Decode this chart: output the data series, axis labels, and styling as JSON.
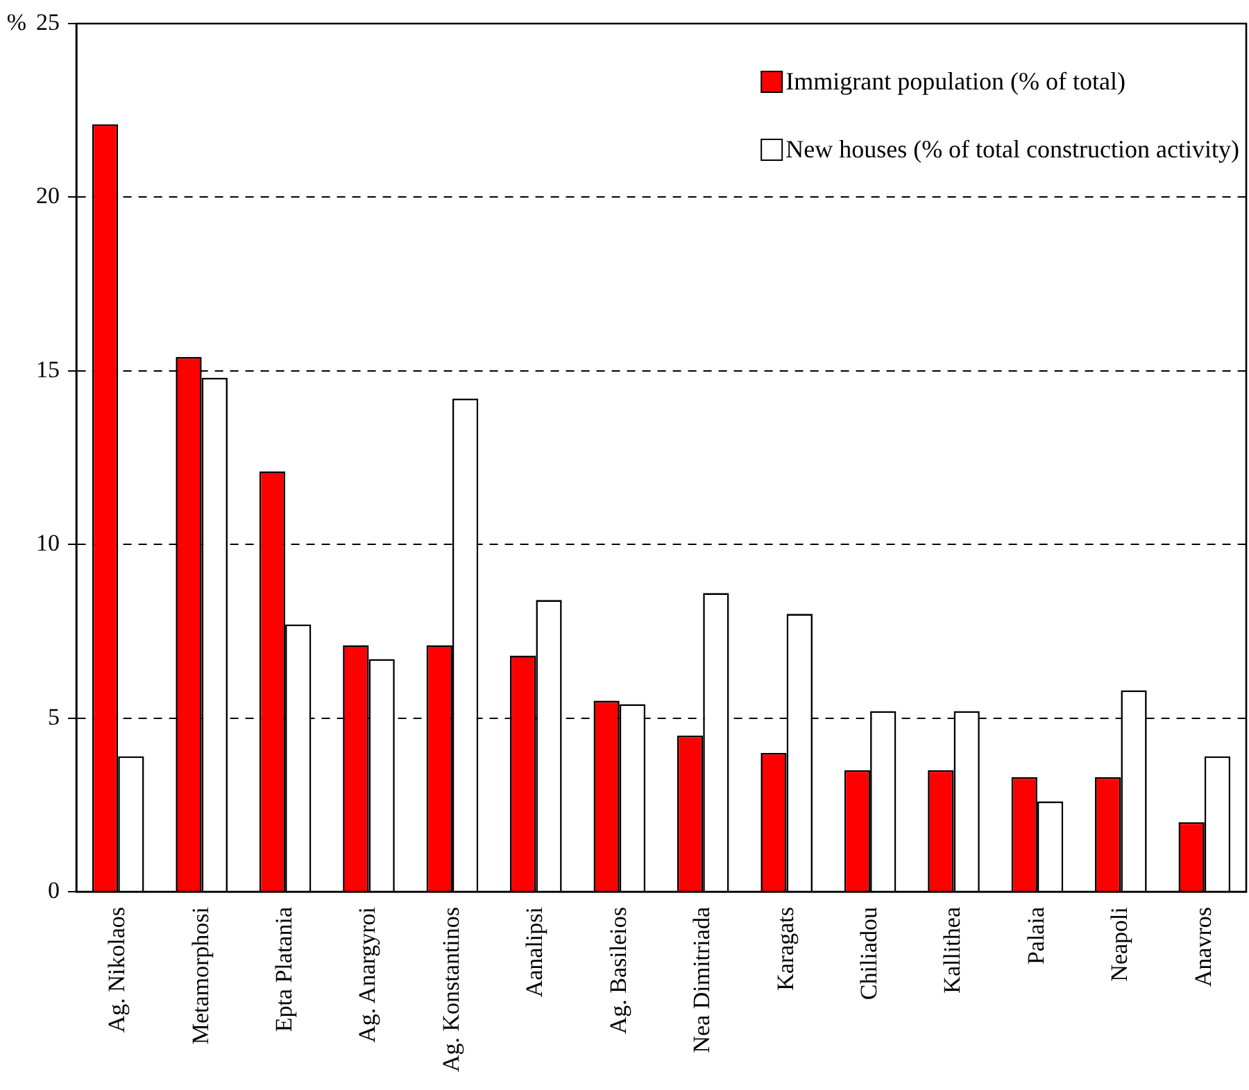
{
  "chart_data": {
    "type": "bar",
    "ylabel": "%",
    "categories": [
      "Ag. Nikolaos",
      "Metamorphosi",
      "Epta Platania",
      "Ag. Anargyroi",
      "Ag. Konstantinos",
      "Aanalipsi",
      "Ag. Basileios",
      "Nea Dimitriada",
      "Karagats",
      "Chiliadou",
      "Kallithea",
      "Palaia",
      "Neapoli",
      "Anavros"
    ],
    "series": [
      {
        "name": "Immigrant population (% of total)",
        "color": "#ff0000",
        "values": [
          22.1,
          15.4,
          12.1,
          7.1,
          7.1,
          6.8,
          5.5,
          4.5,
          4.0,
          3.5,
          3.5,
          3.3,
          3.3,
          2.0
        ]
      },
      {
        "name": "New houses (% of total construction activity)",
        "color": "#ffffff",
        "values": [
          3.9,
          14.8,
          7.7,
          6.7,
          14.2,
          8.4,
          5.4,
          8.6,
          8.0,
          5.2,
          5.2,
          2.6,
          5.8,
          3.9
        ]
      }
    ],
    "ylim": [
      0,
      25
    ],
    "yticks": [
      0,
      5,
      10,
      15,
      20,
      25
    ],
    "grid": "y",
    "legend": "top right",
    "line_style": "dashed"
  }
}
